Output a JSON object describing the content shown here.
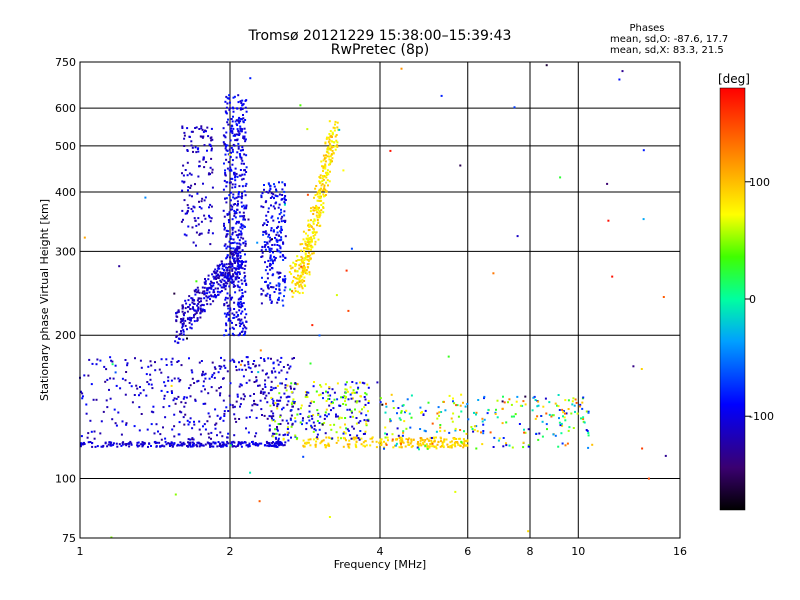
{
  "chart_data": {
    "type": "scatter",
    "title": "Tromsø 20121229 15:38:00–15:39:43",
    "subtitle": "RwPretec (8p)",
    "stats": {
      "heading": "Phases",
      "line1": "mean, sd,O: -87.6, 17.7",
      "line2": "mean, sd,X:  83.3, 21.5"
    },
    "xlabel": "Frequency [MHz]",
    "ylabel": "Stationary phase Virtual Height [km]",
    "x_scale": "log",
    "y_scale": "log",
    "xlim": [
      1,
      16
    ],
    "ylim": [
      75,
      750
    ],
    "x_ticks": [
      1,
      2,
      4,
      6,
      8,
      10,
      16
    ],
    "y_ticks": [
      75,
      100,
      200,
      300,
      400,
      500,
      600,
      750
    ],
    "grid": true,
    "colorbar": {
      "label": "[deg]",
      "range": [
        -180,
        180
      ],
      "ticks": [
        100,
        0,
        -100
      ]
    },
    "series_note": "Each point colored by phase",
    "points": {
      "o_trace_lower": {
        "freq_range": [
          1.0,
          2.6
        ],
        "height": 118,
        "phase": -105
      },
      "o_trace_mid": {
        "freq_range": [
          1.55,
          2.1
        ],
        "height_range": [
          210,
          300
        ],
        "phase": -110
      },
      "o_column_2mhz": {
        "freq": 2.05,
        "height_range": [
          200,
          640
        ],
        "phase": -100
      },
      "o_column_2_5mhz": {
        "freq": 2.45,
        "height_range": [
          230,
          420
        ],
        "phase": -95
      },
      "x_trace_cusp": {
        "freq_range": [
          2.6,
          3.5
        ],
        "height_range": [
          250,
          560
        ],
        "phase": 85
      },
      "x_trace_lower": {
        "freq_range": [
          2.8,
          6.0
        ],
        "height": 118,
        "phase": 90
      },
      "scatter_region": {
        "freq_range": [
          4.0,
          10.5
        ],
        "height_range": [
          115,
          150
        ],
        "phase_range": [
          -120,
          150
        ]
      }
    }
  }
}
